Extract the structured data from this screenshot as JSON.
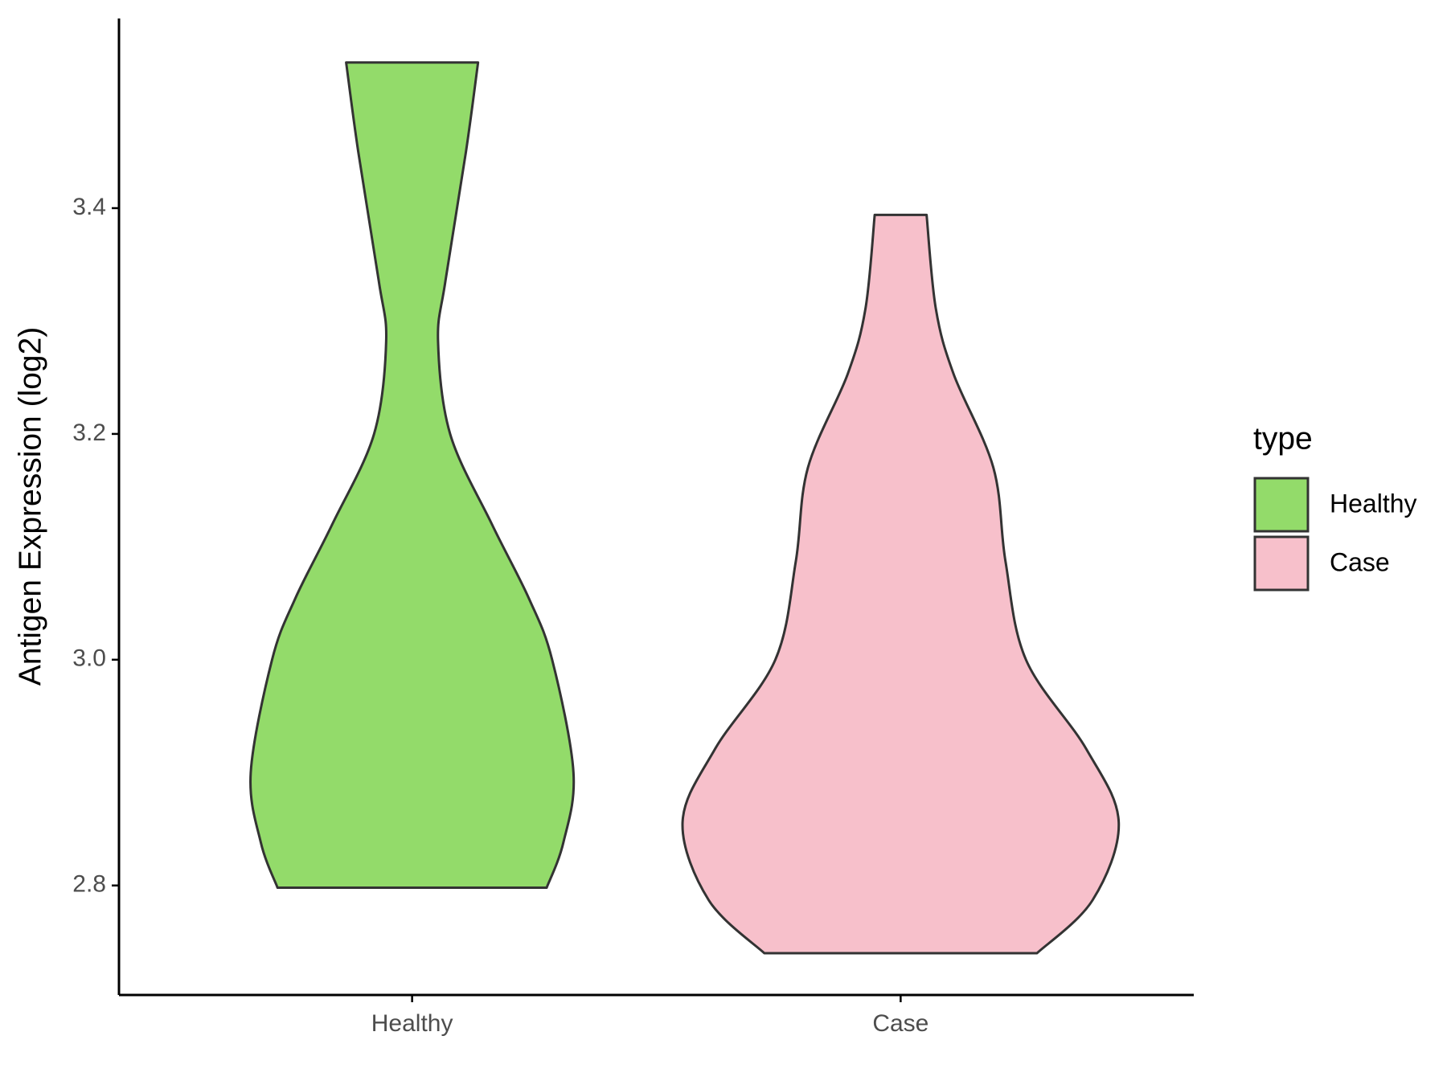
{
  "chart_data": {
    "type": "violin",
    "ylabel": "Antigen Expression (log2)",
    "categories": [
      "Healthy",
      "Case"
    ],
    "series": [
      {
        "name": "Healthy",
        "color": "#93db6a",
        "y": [
          2.798,
          2.838,
          2.9,
          3.0,
          3.054,
          3.12,
          3.2,
          3.282,
          3.336,
          3.45,
          3.529
        ],
        "density": [
          0.612,
          0.688,
          0.734,
          0.637,
          0.532,
          0.363,
          0.173,
          0.118,
          0.152,
          0.245,
          0.3
        ]
      },
      {
        "name": "Case",
        "color": "#f7c0cb",
        "y": [
          2.74,
          2.787,
          2.856,
          2.921,
          3.0,
          3.087,
          3.17,
          3.253,
          3.311,
          3.394
        ],
        "density": [
          0.62,
          0.873,
          0.992,
          0.844,
          0.57,
          0.477,
          0.422,
          0.241,
          0.16,
          0.118
        ]
      }
    ],
    "ylim": [
      2.703,
      3.568
    ],
    "yticks": [
      2.8,
      {
        "value": 3.0,
        "label": "3.0"
      },
      3.2,
      3.4
    ],
    "legend_title": "type",
    "legend_position": "right"
  }
}
